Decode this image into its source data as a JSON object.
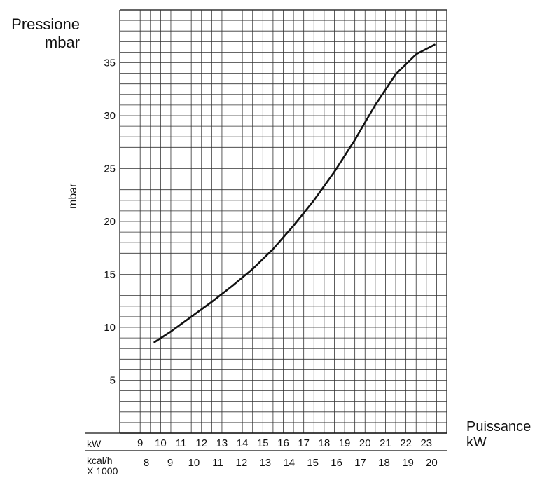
{
  "chart_data": {
    "type": "line",
    "ylabel_top": [
      "Pressione",
      "mbar"
    ],
    "ylabel_side": "mbar",
    "xlabel": [
      "Puissance",
      "kW"
    ],
    "x_axis_kw": {
      "unit": "kW",
      "ticks": [
        9,
        10,
        11,
        12,
        13,
        14,
        15,
        16,
        17,
        18,
        19,
        20,
        21,
        22,
        23
      ]
    },
    "x_axis_kcal": {
      "unit": [
        "kcal/h",
        "X 1000"
      ],
      "ticks": [
        8,
        9,
        10,
        11,
        12,
        13,
        14,
        15,
        16,
        17,
        18,
        19,
        20
      ]
    },
    "y_ticks": [
      5,
      10,
      15,
      20,
      25,
      30,
      35
    ],
    "xlim": [
      8.0,
      24.0
    ],
    "ylim": [
      0,
      40
    ],
    "grid": true,
    "series": [
      {
        "x": [
          9.7,
          10.5,
          11.5,
          12.5,
          13.5,
          14.5,
          15.5,
          16.5,
          17.5,
          18.5,
          19.5,
          20.5,
          21.5,
          22.5,
          23.4
        ],
        "y": [
          8.6,
          9.6,
          11.0,
          12.4,
          13.9,
          15.5,
          17.4,
          19.6,
          22.0,
          24.7,
          27.7,
          31.0,
          33.9,
          35.8,
          36.7
        ]
      }
    ],
    "colors": {
      "grid": "#333333",
      "line": "#111111"
    }
  }
}
